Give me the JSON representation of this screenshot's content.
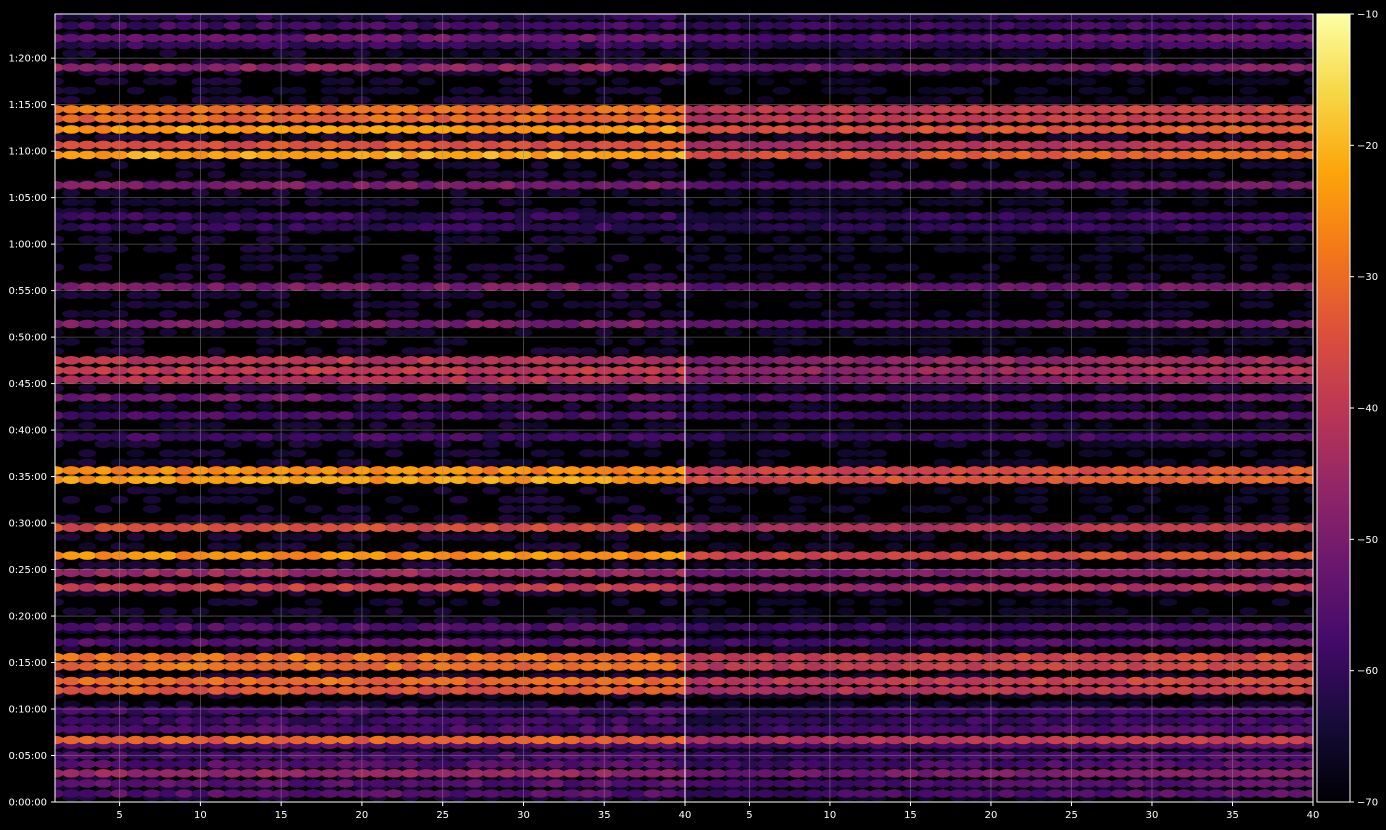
{
  "chart_data": {
    "type": "heatmap",
    "title": "",
    "colormap": "inferno",
    "background_color": "#000000",
    "grid": true,
    "grid_color": "#8a8a8a",
    "panels": [
      {
        "name": "",
        "xlim": [
          1,
          40
        ],
        "intensity": 1.0
      },
      {
        "name": "",
        "xlim": [
          1,
          40
        ],
        "intensity": 0.72
      }
    ],
    "x_ticks": [
      5,
      10,
      15,
      20,
      25,
      30,
      35,
      40
    ],
    "x_tick_labels": [
      "5",
      "10",
      "15",
      "20",
      "25",
      "30",
      "35",
      "40"
    ],
    "y_unit": "seconds",
    "ylim": [
      0,
      5085
    ],
    "y_ticks": [
      0,
      300,
      600,
      900,
      1200,
      1500,
      1800,
      2100,
      2400,
      2700,
      3000,
      3300,
      3600,
      3900,
      4200,
      4500,
      4800
    ],
    "y_tick_labels": [
      "0:00:00",
      "0:05:00",
      "0:10:00",
      "0:15:00",
      "0:20:00",
      "0:25:00",
      "0:30:00",
      "0:35:00",
      "0:40:00",
      "0:45:00",
      "0:50:00",
      "0:55:00",
      "1:00:00",
      "1:05:00",
      "1:10:00",
      "1:15:00",
      "1:20:00"
    ],
    "colorbar": {
      "range": [
        -70,
        -10
      ],
      "ticks": [
        -70,
        -60,
        -50,
        -40,
        -30,
        -20,
        -10
      ],
      "tick_labels": [
        "−70",
        "−60",
        "−50",
        "−40",
        "−30",
        "−20",
        "−10"
      ],
      "position": "right"
    },
    "bands": [
      {
        "t": 55,
        "level": -55
      },
      {
        "t": 120,
        "level": -55
      },
      {
        "t": 185,
        "level": -46
      },
      {
        "t": 245,
        "level": -56
      },
      {
        "t": 300,
        "level": -57
      },
      {
        "t": 370,
        "level": -57
      },
      {
        "t": 400,
        "level": -32
      },
      {
        "t": 470,
        "level": -57
      },
      {
        "t": 525,
        "level": -59
      },
      {
        "t": 590,
        "level": -58
      },
      {
        "t": 720,
        "level": -33
      },
      {
        "t": 780,
        "level": -30
      },
      {
        "t": 875,
        "level": -30
      },
      {
        "t": 935,
        "level": -29
      },
      {
        "t": 1030,
        "level": -55
      },
      {
        "t": 1130,
        "level": -56
      },
      {
        "t": 1385,
        "level": -38
      },
      {
        "t": 1480,
        "level": -45
      },
      {
        "t": 1590,
        "level": -25
      },
      {
        "t": 1770,
        "level": -35
      },
      {
        "t": 2080,
        "level": -23
      },
      {
        "t": 2140,
        "level": -26
      },
      {
        "t": 2355,
        "level": -58
      },
      {
        "t": 2495,
        "level": -57
      },
      {
        "t": 2610,
        "level": -52
      },
      {
        "t": 2725,
        "level": -42
      },
      {
        "t": 2785,
        "level": -39
      },
      {
        "t": 2850,
        "level": -41
      },
      {
        "t": 3085,
        "level": -50
      },
      {
        "t": 3325,
        "level": -50
      },
      {
        "t": 3710,
        "level": -60
      },
      {
        "t": 3780,
        "level": -60
      },
      {
        "t": 3980,
        "level": -50
      },
      {
        "t": 4175,
        "level": -22
      },
      {
        "t": 4240,
        "level": -34
      },
      {
        "t": 4340,
        "level": -24
      },
      {
        "t": 4410,
        "level": -31
      },
      {
        "t": 4470,
        "level": -30
      },
      {
        "t": 4740,
        "level": -47
      },
      {
        "t": 4885,
        "level": -60
      },
      {
        "t": 4930,
        "level": -52
      },
      {
        "t": 5010,
        "level": -58
      },
      {
        "t": 5070,
        "level": -62
      }
    ]
  }
}
